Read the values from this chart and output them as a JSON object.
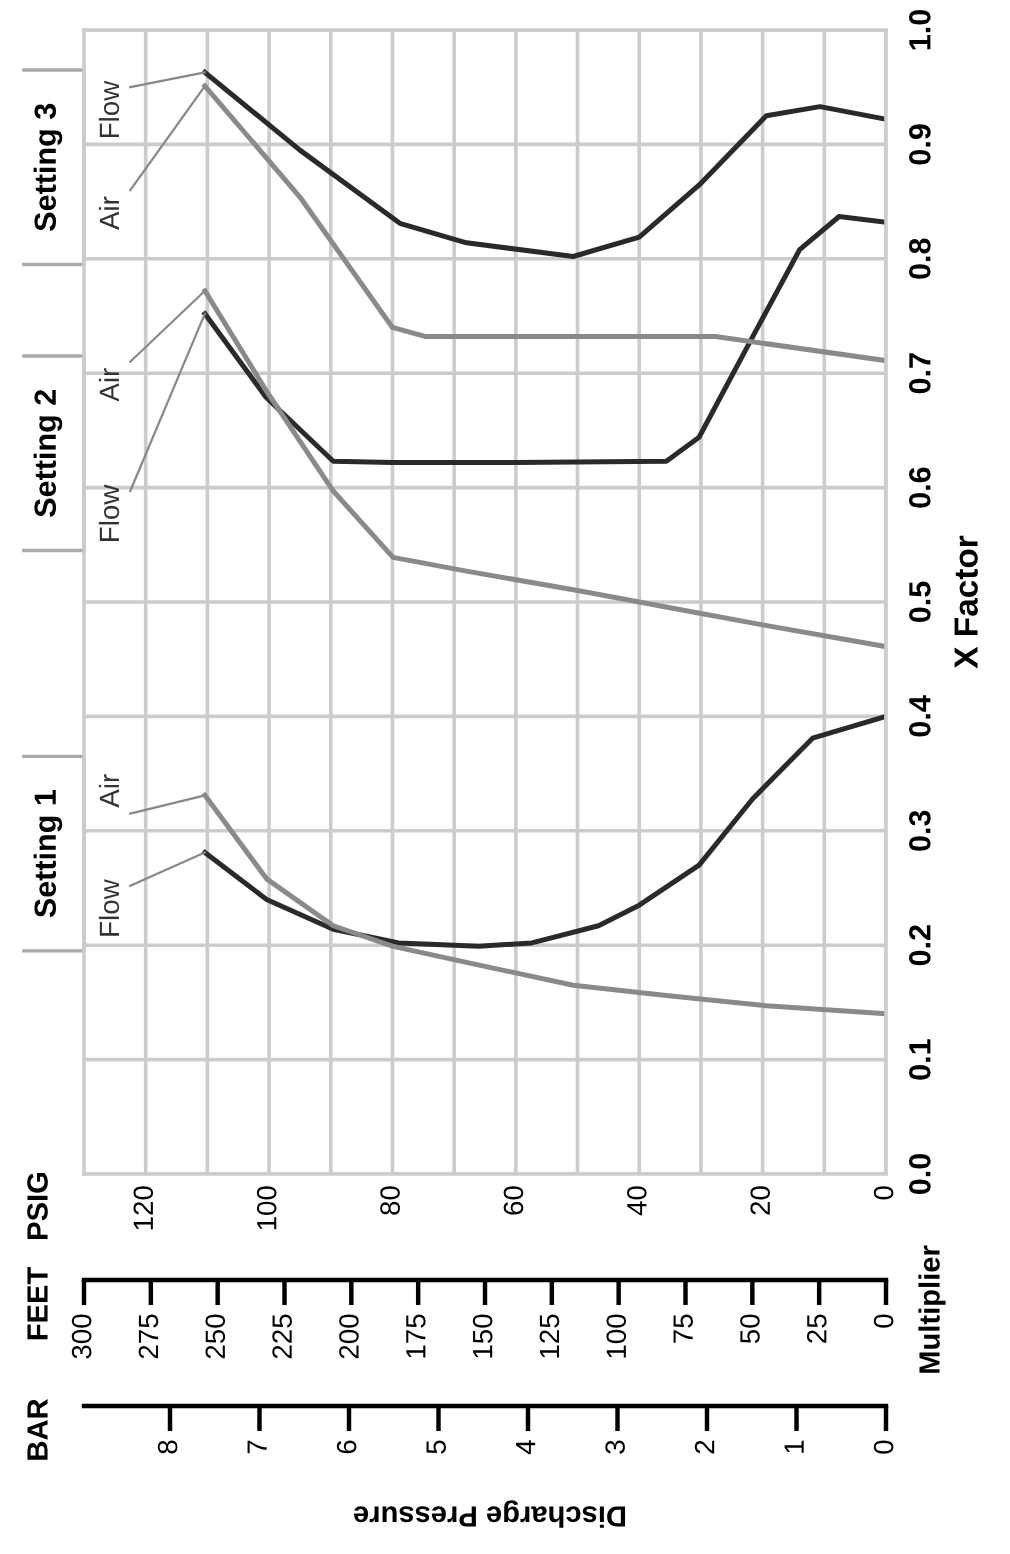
{
  "chart_data": {
    "type": "line",
    "ylabel": "X Factor",
    "annotations": [
      "Setting 1",
      "Setting 2",
      "Setting 3",
      "Discharge Pressure",
      "Multiplier",
      "PSIG",
      "FEET",
      "BAR",
      "8",
      "7",
      "6",
      "5",
      "4",
      "3",
      "2",
      "1",
      "0"
    ],
    "xlim": [
      130,
      0
    ],
    "ylim": [
      0,
      1.0
    ],
    "xticks": [
      120,
      {
        "value": 110,
        "label": null
      },
      100,
      {
        "value": 90,
        "label": null
      },
      80,
      {
        "value": 70,
        "label": null
      },
      60,
      {
        "value": 50,
        "label": null
      },
      40,
      {
        "value": 30,
        "label": null
      },
      20,
      {
        "value": 10,
        "label": null
      },
      0
    ],
    "yticks": [
      {
        "value": 0,
        "label": "0.0"
      },
      0.1,
      0.2,
      0.3,
      0.4,
      0.5,
      0.6,
      0.7,
      0.8,
      0.9,
      {
        "value": 1,
        "label": "1.0"
      }
    ],
    "x2lim": [
      300,
      0
    ],
    "x2ticks": [
      300,
      275,
      250,
      225,
      200,
      175,
      150,
      125,
      100,
      75,
      50,
      25,
      0
    ],
    "grid": true,
    "line_style": "solid",
    "marker": "none",
    "series": [
      {
        "name": "Flow",
        "color": "#2a2a2a",
        "x": [
          110.4,
          100.4,
          89.6,
          79,
          66,
          57.4,
          46.6,
          40,
          30.3,
          21.6,
          11.9,
          0
        ],
        "values": [
          0.281,
          0.24,
          0.214,
          0.202,
          0.199,
          0.202,
          0.217,
          0.235,
          0.27,
          0.328,
          0.381,
          0.4
        ]
      },
      {
        "name": "Air",
        "color": "#8a8a8a",
        "x": [
          110.4,
          100.4,
          89.6,
          79.9,
          68,
          50.7,
          35.6,
          19.4,
          0
        ],
        "values": [
          0.331,
          0.258,
          0.217,
          0.199,
          0.185,
          0.165,
          0.156,
          0.147,
          0.14
        ]
      },
      {
        "name": "Flow",
        "color": "#2a2a2a",
        "x": [
          110.4,
          100.5,
          89.6,
          80,
          60,
          35.6,
          30.3,
          21.6,
          14,
          7.6,
          0
        ],
        "values": [
          0.752,
          0.679,
          0.623,
          0.622,
          0.622,
          0.623,
          0.644,
          0.732,
          0.808,
          0.837,
          0.832
        ]
      },
      {
        "name": "Air",
        "color": "#8a8a8a",
        "x": [
          110.4,
          100.5,
          89.6,
          79.9,
          68,
          50,
          35,
          20,
          0
        ],
        "values": [
          0.772,
          0.685,
          0.597,
          0.539,
          0.527,
          0.51,
          0.495,
          0.48,
          0.461
        ]
      },
      {
        "name": "Flow",
        "color": "#2a2a2a",
        "x": [
          110.4,
          95,
          78.8,
          68,
          50.7,
          40,
          30,
          19.4,
          10.7,
          0
        ],
        "values": [
          0.963,
          0.895,
          0.831,
          0.814,
          0.802,
          0.819,
          0.866,
          0.925,
          0.933,
          0.922
        ]
      },
      {
        "name": "Air",
        "color": "#8a8a8a",
        "x": [
          110.4,
          95,
          80,
          74.6,
          50,
          27.6,
          0
        ],
        "values": [
          0.951,
          0.854,
          0.74,
          0.732,
          0.732,
          0.732,
          0.711
        ]
      }
    ]
  }
}
